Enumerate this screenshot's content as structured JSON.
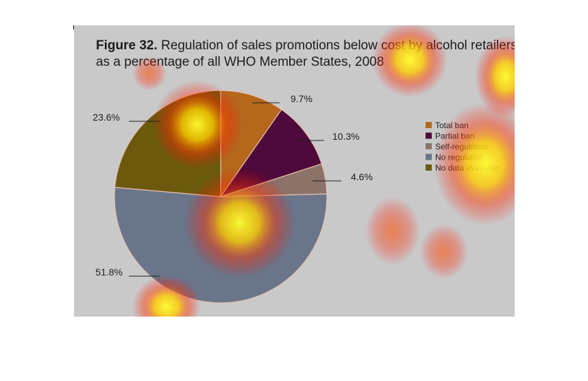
{
  "figure_label": "Figure 32.",
  "title_line1": "Regulation of sales promotions below cost by alcohol retailers,",
  "title_line2": "as a percentage of all WHO Member States, 2008",
  "chart_data": {
    "type": "pie",
    "title": "Figure 32. Regulation of sales promotions below cost by alcohol retailers, as a percentage of all WHO Member States, 2008",
    "slices": [
      {
        "name": "Total ban",
        "value": 9.7,
        "label": "9.7%",
        "color": "#b5671c"
      },
      {
        "name": "Partial ban",
        "value": 10.3,
        "label": "10.3%",
        "color": "#4d0a3a"
      },
      {
        "name": "Self-regulation",
        "value": 4.6,
        "label": "4.6%",
        "color": "#8c7369"
      },
      {
        "name": "No regulation",
        "value": 51.8,
        "label": "51.8%",
        "color": "#6a7589"
      },
      {
        "name": "No data available",
        "value": 23.6,
        "label": "23.6%",
        "color": "#6b5a0e"
      }
    ],
    "legend": [
      "Total ban",
      "Partial ban",
      "Self-regulation",
      "No regulation",
      "No data available"
    ],
    "legend_position": "right"
  }
}
